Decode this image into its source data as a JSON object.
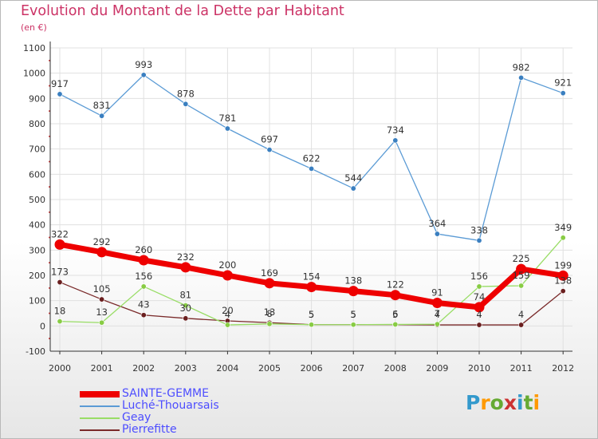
{
  "title": "Evolution du Montant de la Dette par Habitant",
  "unit_label": "(en €)",
  "logo_text": "Proxiti",
  "logo_colors": [
    "#3399cc",
    "#ff9900",
    "#66aa33",
    "#cc3333",
    "#3399cc",
    "#66aa33",
    "#ff9900"
  ],
  "chart_data": {
    "type": "line",
    "x": [
      "2000",
      "2001",
      "2002",
      "2003",
      "2004",
      "2005",
      "2006",
      "2007",
      "2008",
      "2009",
      "2010",
      "2011",
      "2012"
    ],
    "ylim": [
      -100,
      1100
    ],
    "yticks": [
      "-100",
      "0",
      "100",
      "200",
      "300",
      "400",
      "500",
      "600",
      "700",
      "800",
      "900",
      "1000",
      "1100"
    ],
    "grid": true,
    "legend_position": "bottom-left",
    "series": [
      {
        "name": "SAINTE-GEMME",
        "color": "#ee0000",
        "marker": "#ee0000",
        "values": [
          322,
          292,
          260,
          232,
          200,
          169,
          154,
          138,
          122,
          91,
          74,
          225,
          199
        ],
        "labels": [
          "322",
          "292",
          "260",
          "232",
          "200",
          "169",
          "154",
          "138",
          "122",
          "91",
          "74",
          "225",
          "199"
        ]
      },
      {
        "name": "Luché-Thouarsais",
        "color": "#5b9bd5",
        "marker": "#3a7fc0",
        "values": [
          917,
          831,
          993,
          878,
          781,
          697,
          622,
          544,
          734,
          364,
          338,
          982,
          921
        ],
        "labels": [
          "917",
          "831",
          "993",
          "878",
          "781",
          "697",
          "622",
          "544",
          "734",
          "364",
          "338",
          "982",
          "921"
        ]
      },
      {
        "name": "Geay",
        "color": "#99dd66",
        "marker": "#88cc44",
        "values": [
          18,
          13,
          156,
          81,
          4,
          8,
          5,
          5,
          6,
          7,
          156,
          159,
          349
        ],
        "labels": [
          "18",
          "13",
          "156",
          "81",
          "4",
          "8",
          "5",
          "5",
          "6",
          "7",
          "156",
          "159",
          "349"
        ]
      },
      {
        "name": "Pierrefitte",
        "color": "#7a2a2a",
        "marker": "#6a1f1f",
        "values": [
          173,
          105,
          43,
          30,
          20,
          13,
          5,
          5,
          5,
          4,
          4,
          4,
          138
        ],
        "labels": [
          "173",
          "105",
          "43",
          "30",
          "20",
          "13",
          "5",
          "5",
          "5",
          "4",
          "4",
          "4",
          "138"
        ]
      }
    ]
  }
}
